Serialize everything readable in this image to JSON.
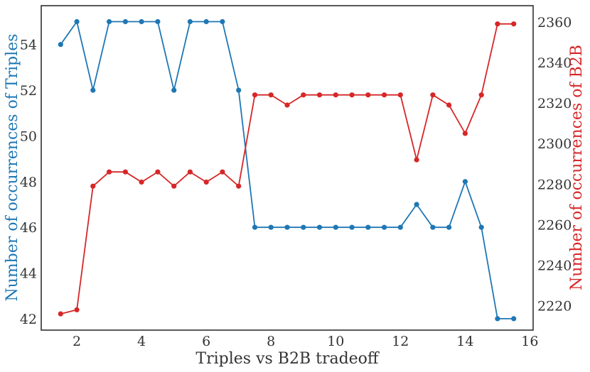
{
  "chart_data": {
    "type": "line",
    "xlabel": "Triples vs B2B tradeoff",
    "ylabel_left": "Number of occurrences of Triples",
    "ylabel_right": "Number of occurrences of B2B",
    "xlim": [
      0.9,
      16.1
    ],
    "ylim_left": [
      41.5,
      55.7
    ],
    "ylim_right": [
      2208,
      2368
    ],
    "x_ticks": [
      2,
      4,
      6,
      8,
      10,
      12,
      14,
      16
    ],
    "y_left_ticks": [
      42,
      44,
      46,
      48,
      50,
      52,
      54
    ],
    "y_right_ticks": [
      2220,
      2240,
      2260,
      2280,
      2300,
      2320,
      2340,
      2360
    ],
    "grid": false,
    "x": [
      1.5,
      2,
      2.5,
      3,
      3.5,
      4,
      4.5,
      5,
      5.5,
      6,
      6.5,
      7,
      7.5,
      8,
      8.5,
      9,
      9.5,
      10,
      10.5,
      11,
      11.5,
      12,
      12.5,
      13,
      13.5,
      14,
      14.5,
      15,
      15.5
    ],
    "series": [
      {
        "axis": "left",
        "color": "#1f77b4",
        "values": [
          54,
          55,
          52,
          55,
          55,
          55,
          55,
          52,
          55,
          55,
          55,
          52,
          46,
          46,
          46,
          46,
          46,
          46,
          46,
          46,
          46,
          46,
          47,
          46,
          46,
          48,
          46,
          42,
          42
        ]
      },
      {
        "axis": "right",
        "color": "#d62728",
        "values": [
          2216,
          2218,
          2279,
          2286,
          2286,
          2281,
          2286,
          2279,
          2286,
          2281,
          2286,
          2279,
          2324,
          2324,
          2319,
          2324,
          2324,
          2324,
          2324,
          2324,
          2324,
          2324,
          2292,
          2324,
          2319,
          2305,
          2324,
          2359,
          2359
        ]
      }
    ]
  }
}
